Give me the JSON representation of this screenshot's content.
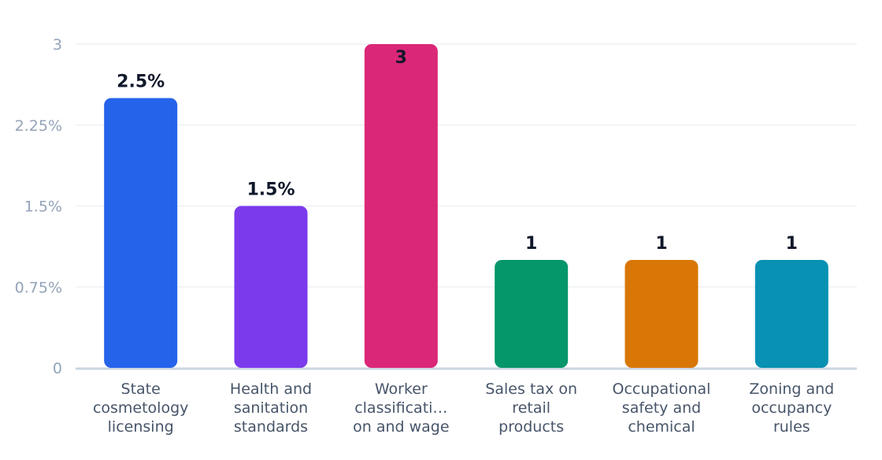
{
  "chart_data": {
    "type": "bar",
    "categories": [
      [
        "State",
        "cosmetology",
        "licensing"
      ],
      [
        "Health and",
        "sanitation",
        "standards"
      ],
      [
        "Worker",
        "classificati…",
        "on and wage"
      ],
      [
        "Sales tax on",
        "retail",
        "products"
      ],
      [
        "Occupational",
        "safety and",
        "chemical"
      ],
      [
        "Zoning and",
        "occupancy",
        "rules"
      ]
    ],
    "values": [
      2.5,
      1.5,
      3,
      1,
      1,
      1
    ],
    "data_labels": [
      "2.5%",
      "1.5%",
      "3",
      "1",
      "1",
      "1"
    ],
    "colors": [
      "#2563eb",
      "#7c3aed",
      "#db2777",
      "#059669",
      "#d97706",
      "#0891b2"
    ],
    "yticks": [
      0,
      0.75,
      1.5,
      2.25,
      3
    ],
    "ytick_labels": [
      "0",
      "0.75%",
      "1.5%",
      "2.25%",
      "3"
    ],
    "ylim": [
      0,
      3
    ],
    "grid": true,
    "title": "",
    "xlabel": "",
    "ylabel": ""
  }
}
